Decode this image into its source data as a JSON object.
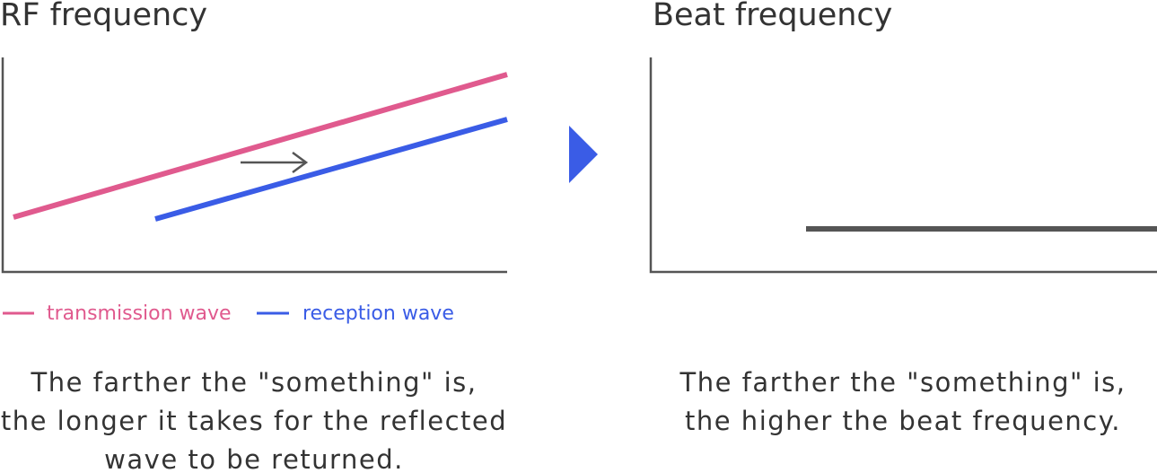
{
  "left": {
    "title": "RF frequency",
    "legend": [
      "transmission wave",
      "reception wave"
    ],
    "caption": [
      "The farther the \"something\" is,",
      "the longer it takes for the reflected",
      "wave to be returned."
    ]
  },
  "right": {
    "title": "Beat frequency",
    "caption": [
      "The farther the \"something\" is,",
      "the higher the beat frequency."
    ]
  }
}
